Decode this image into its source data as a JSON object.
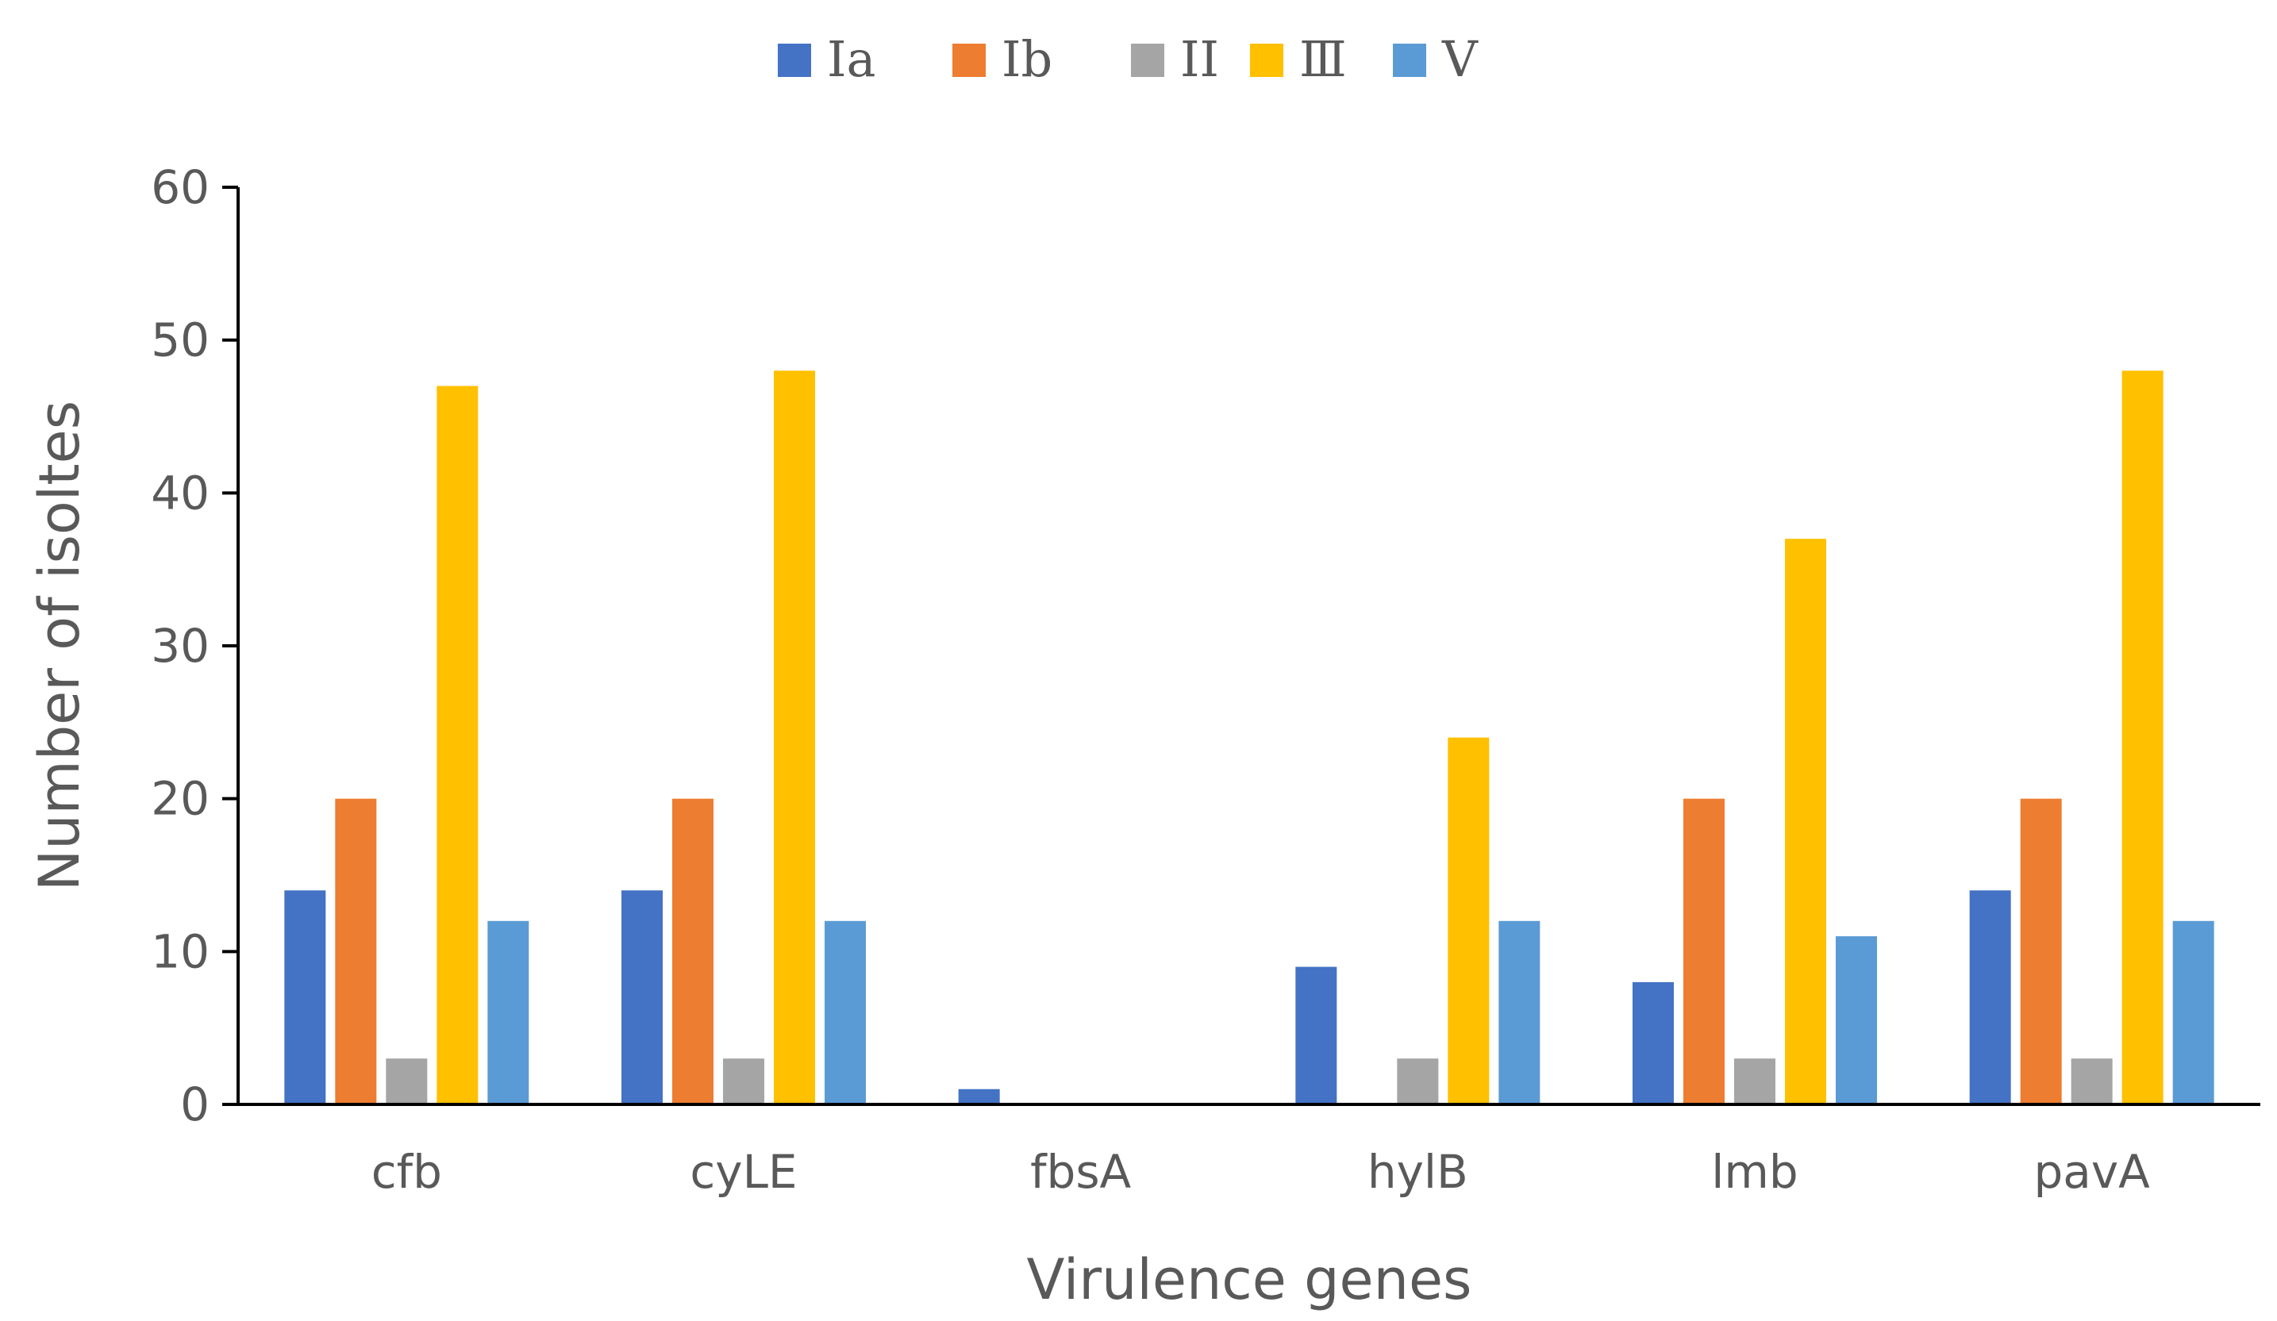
{
  "chart_data": {
    "type": "bar",
    "title": "",
    "xlabel": "Virulence genes",
    "ylabel": "Number of isoltes",
    "ylim": [
      0,
      60
    ],
    "yticks": [
      0,
      10,
      20,
      30,
      40,
      50,
      60
    ],
    "grid": false,
    "legend_position": "top-center",
    "categories": [
      "cfb",
      "cyLE",
      "fbsA",
      "hylB",
      "lmb",
      "pavA"
    ],
    "series": [
      {
        "name": "Ⅰa",
        "color": "#4472C4",
        "values": [
          14,
          14,
          1,
          9,
          8,
          14
        ]
      },
      {
        "name": "Ⅰb",
        "color": "#ED7D31",
        "values": [
          20,
          20,
          0,
          0,
          20,
          20
        ]
      },
      {
        "name": "II",
        "color": "#A5A5A5",
        "values": [
          3,
          3,
          0,
          3,
          3,
          3
        ]
      },
      {
        "name": "Ⅲ",
        "color": "#FFC000",
        "values": [
          47,
          48,
          0,
          24,
          37,
          48
        ]
      },
      {
        "name": "Ⅴ",
        "color": "#5B9BD5",
        "values": [
          12,
          12,
          0,
          12,
          11,
          12
        ]
      }
    ]
  }
}
